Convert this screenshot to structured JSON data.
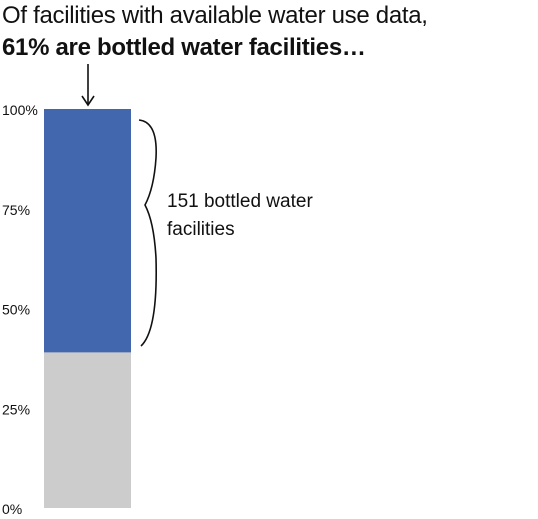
{
  "title": {
    "line1": "Of facilities with available water use data,",
    "line2": "61% are bottled water facilities…"
  },
  "chart_data": {
    "type": "bar",
    "stacked": true,
    "categories": [
      ""
    ],
    "series": [
      {
        "values": [
          39
        ],
        "color": "#cccccc"
      },
      {
        "values": [
          61
        ],
        "color": "#4267ae"
      }
    ],
    "ylim": [
      0,
      100
    ],
    "yticks": [
      0,
      25,
      50,
      75,
      100
    ],
    "ytick_labels": [
      "0%",
      "25%",
      "50%",
      "75%",
      "100%"
    ],
    "grid": false,
    "annotation": {
      "lines": [
        "151 bottled water",
        "facilities"
      ]
    }
  }
}
